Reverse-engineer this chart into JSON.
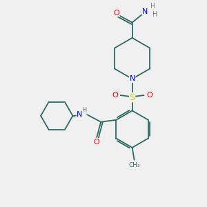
{
  "bg_color": "#f0f0f0",
  "bond_color": "#2d6b5e",
  "atom_colors": {
    "O": "#ff0000",
    "N": "#0000ff",
    "S": "#cccc00",
    "H": "#808080",
    "C": "#2d6b5e"
  }
}
